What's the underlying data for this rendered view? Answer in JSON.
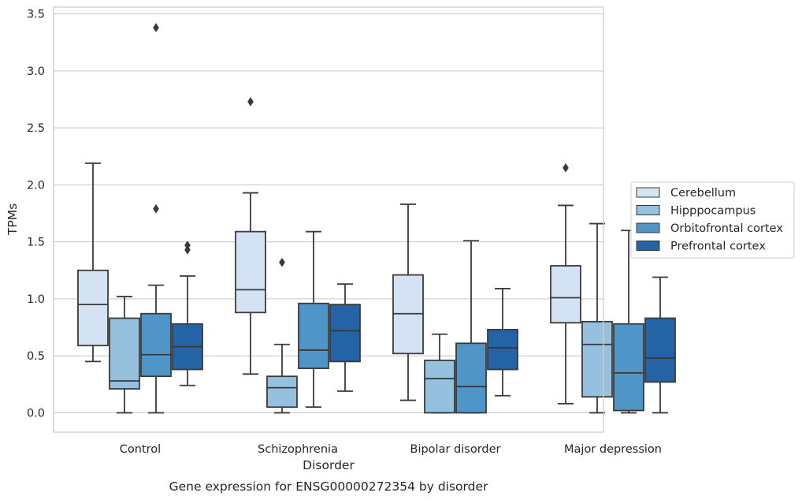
{
  "chart_data": {
    "type": "box",
    "title": "Gene expression for ENSG00000272354 by disorder",
    "xlabel": "Disorder",
    "ylabel": "TPMs",
    "ylim": [
      -0.17,
      3.56
    ],
    "yticks": [
      0.0,
      0.5,
      1.0,
      1.5,
      2.0,
      2.5,
      3.0,
      3.5
    ],
    "ytick_labels": [
      "0.0",
      "0.5",
      "1.0",
      "1.5",
      "2.0",
      "2.5",
      "3.0",
      "3.5"
    ],
    "grid": "horizontal",
    "legend_position": "right",
    "categories": [
      "Control",
      "Schizophrenia",
      "Bipolar disorder",
      "Major depression"
    ],
    "series": [
      {
        "name": "Cerebellum",
        "color": "#d3e3f3",
        "boxes": [
          {
            "whislo": 0.45,
            "q1": 0.59,
            "med": 0.95,
            "q3": 1.25,
            "whishi": 2.19,
            "fliers": []
          },
          {
            "whislo": 0.34,
            "q1": 0.88,
            "med": 1.08,
            "q3": 1.59,
            "whishi": 1.93,
            "fliers": [
              2.73
            ]
          },
          {
            "whislo": 0.11,
            "q1": 0.52,
            "med": 0.87,
            "q3": 1.21,
            "whishi": 1.83,
            "fliers": []
          },
          {
            "whislo": 0.08,
            "q1": 0.79,
            "med": 1.01,
            "q3": 1.29,
            "whishi": 1.82,
            "fliers": [
              2.15
            ]
          }
        ]
      },
      {
        "name": "Hipppocampus",
        "color": "#95c0de",
        "boxes": [
          {
            "whislo": 0.0,
            "q1": 0.21,
            "med": 0.28,
            "q3": 0.83,
            "whishi": 1.02,
            "fliers": []
          },
          {
            "whislo": 0.0,
            "q1": 0.05,
            "med": 0.22,
            "q3": 0.32,
            "whishi": 0.6,
            "fliers": [
              1.32
            ]
          },
          {
            "whislo": 0.0,
            "q1": 0.0,
            "med": 0.3,
            "q3": 0.46,
            "whishi": 0.69,
            "fliers": []
          },
          {
            "whislo": 0.0,
            "q1": 0.14,
            "med": 0.6,
            "q3": 0.8,
            "whishi": 1.66,
            "fliers": []
          }
        ]
      },
      {
        "name": "Orbitofrontal cortex",
        "color": "#5095c8",
        "boxes": [
          {
            "whislo": 0.0,
            "q1": 0.32,
            "med": 0.51,
            "q3": 0.87,
            "whishi": 1.12,
            "fliers": [
              1.79,
              3.38
            ]
          },
          {
            "whislo": 0.05,
            "q1": 0.39,
            "med": 0.55,
            "q3": 0.96,
            "whishi": 1.59,
            "fliers": []
          },
          {
            "whislo": 0.0,
            "q1": 0.0,
            "med": 0.23,
            "q3": 0.61,
            "whishi": 1.51,
            "fliers": []
          },
          {
            "whislo": 0.0,
            "q1": 0.02,
            "med": 0.35,
            "q3": 0.78,
            "whishi": 1.6,
            "fliers": []
          }
        ]
      },
      {
        "name": "Prefrontal cortex",
        "color": "#2363a6",
        "boxes": [
          {
            "whislo": 0.24,
            "q1": 0.38,
            "med": 0.58,
            "q3": 0.78,
            "whishi": 1.2,
            "fliers": [
              1.43,
              1.47
            ]
          },
          {
            "whislo": 0.19,
            "q1": 0.45,
            "med": 0.72,
            "q3": 0.95,
            "whishi": 1.13,
            "fliers": []
          },
          {
            "whislo": 0.15,
            "q1": 0.38,
            "med": 0.57,
            "q3": 0.73,
            "whishi": 1.09,
            "fliers": []
          },
          {
            "whislo": 0.0,
            "q1": 0.27,
            "med": 0.48,
            "q3": 0.83,
            "whishi": 1.19,
            "fliers": []
          }
        ]
      }
    ]
  }
}
